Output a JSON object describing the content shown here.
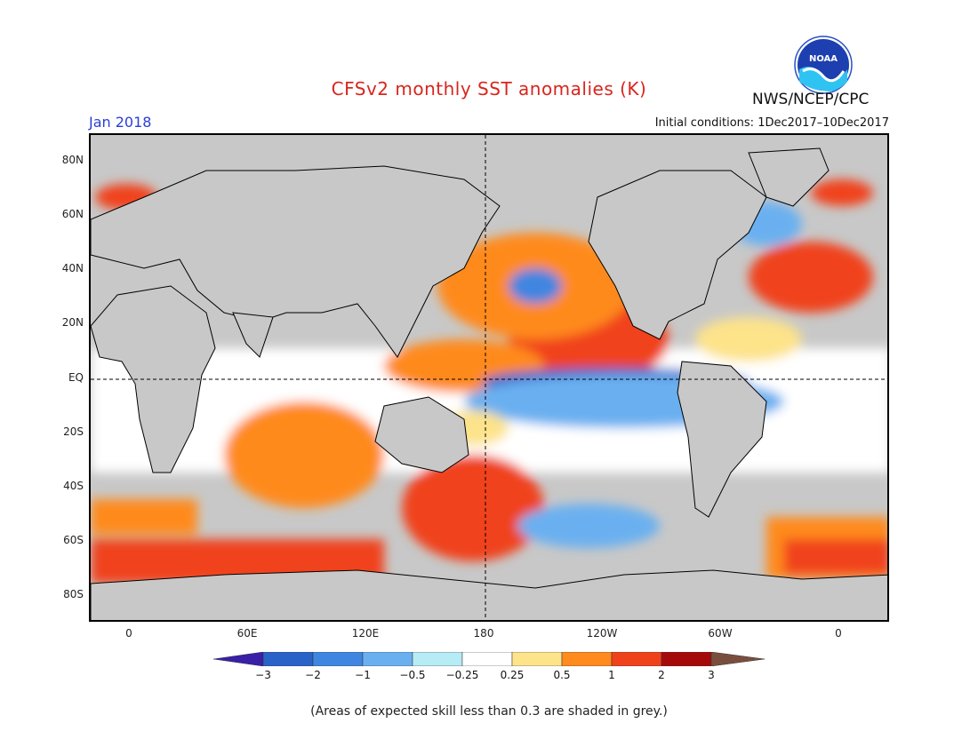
{
  "header": {
    "title": "CFSv2 monthly SST anomalies (K)",
    "agency": "NWS/NCEP/CPC",
    "logo_text": "NOAA",
    "month": "Jan 2018",
    "initial_conditions": "Initial conditions: 1Dec2017–10Dec2017"
  },
  "map": {
    "lat_labels": [
      "80N",
      "60N",
      "40N",
      "20N",
      "EQ",
      "20S",
      "40S",
      "60S",
      "80S"
    ],
    "lon_labels": [
      "0",
      "60E",
      "120E",
      "180",
      "120W",
      "60W",
      "0"
    ],
    "land_color": "#c8c8c8",
    "dashed_lines": [
      "equator",
      "dateline"
    ]
  },
  "colorbar": {
    "labels": [
      "−3",
      "−2",
      "−1",
      "−0.5",
      "−0.25",
      "0.25",
      "0.5",
      "1",
      "2",
      "3"
    ],
    "colors": [
      "#3a1fa8",
      "#2a63c8",
      "#3f86e0",
      "#6ab0f0",
      "#b7ebf5",
      "#ffffff",
      "#fde38a",
      "#ff8a1e",
      "#f0421a",
      "#d2140f",
      "#a50a0a",
      "#7a4e3e"
    ]
  },
  "footnote": "(Areas of expected skill less than 0.3 are shaded in grey.)"
}
